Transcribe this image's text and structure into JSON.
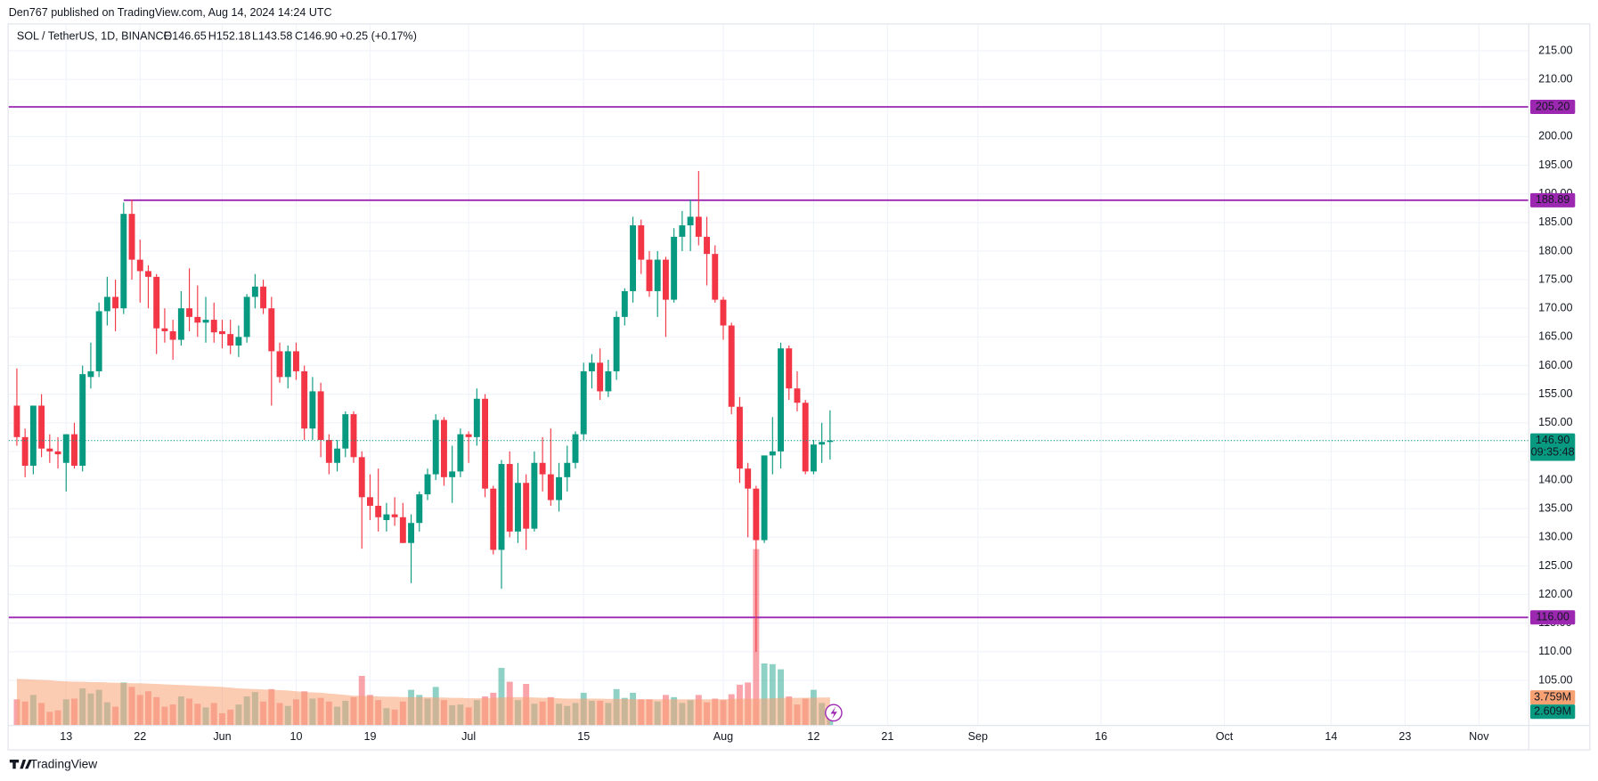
{
  "header": {
    "publisher": "Den767 published on TradingView.com, Aug 14, 2024 14:24 UTC"
  },
  "footer": {
    "brand": "TradingView"
  },
  "chart_data": {
    "type": "candlestick",
    "symbol": "SOL / TetherUS, 1D, BINANCE",
    "ohlc_legend": [
      "O146.65",
      "H152.18",
      "L143.58",
      "C146.90",
      "+0.25 (+0.17%)"
    ],
    "up_color": "#089981",
    "down_color": "#f23645",
    "x": [
      "2024-05-07",
      "2024-05-08",
      "2024-05-09",
      "2024-05-10",
      "2024-05-11",
      "2024-05-12",
      "2024-05-13",
      "2024-05-14",
      "2024-05-15",
      "2024-05-16",
      "2024-05-17",
      "2024-05-18",
      "2024-05-19",
      "2024-05-20",
      "2024-05-21",
      "2024-05-22",
      "2024-05-23",
      "2024-05-24",
      "2024-05-25",
      "2024-05-26",
      "2024-05-27",
      "2024-05-28",
      "2024-05-29",
      "2024-05-30",
      "2024-05-31",
      "2024-06-01",
      "2024-06-02",
      "2024-06-03",
      "2024-06-04",
      "2024-06-05",
      "2024-06-06",
      "2024-06-07",
      "2024-06-08",
      "2024-06-09",
      "2024-06-10",
      "2024-06-11",
      "2024-06-12",
      "2024-06-13",
      "2024-06-14",
      "2024-06-15",
      "2024-06-16",
      "2024-06-17",
      "2024-06-18",
      "2024-06-19",
      "2024-06-20",
      "2024-06-21",
      "2024-06-22",
      "2024-06-23",
      "2024-06-24",
      "2024-06-25",
      "2024-06-26",
      "2024-06-27",
      "2024-06-28",
      "2024-06-29",
      "2024-06-30",
      "2024-07-01",
      "2024-07-02",
      "2024-07-03",
      "2024-07-04",
      "2024-07-05",
      "2024-07-06",
      "2024-07-07",
      "2024-07-08",
      "2024-07-09",
      "2024-07-10",
      "2024-07-11",
      "2024-07-12",
      "2024-07-13",
      "2024-07-14",
      "2024-07-15",
      "2024-07-16",
      "2024-07-17",
      "2024-07-18",
      "2024-07-19",
      "2024-07-20",
      "2024-07-21",
      "2024-07-22",
      "2024-07-23",
      "2024-07-24",
      "2024-07-25",
      "2024-07-26",
      "2024-07-27",
      "2024-07-28",
      "2024-07-29",
      "2024-07-30",
      "2024-07-31",
      "2024-08-01",
      "2024-08-02",
      "2024-08-03",
      "2024-08-04",
      "2024-08-05",
      "2024-08-06",
      "2024-08-07",
      "2024-08-08",
      "2024-08-09",
      "2024-08-10",
      "2024-08-11",
      "2024-08-12",
      "2024-08-13",
      "2024-08-14"
    ],
    "open": [
      153,
      147.5,
      142.5,
      153,
      145.5,
      145,
      143,
      148,
      142.5,
      158,
      159,
      169.5,
      172,
      170,
      186.5,
      178.5,
      176.5,
      175.5,
      166.5,
      166,
      164.5,
      170,
      168.5,
      167.5,
      168,
      166,
      165.5,
      163.5,
      165,
      172,
      173.8,
      170,
      162.5,
      158,
      162.5,
      159,
      149,
      155.5,
      147,
      143,
      145.5,
      151.5,
      144,
      137,
      135.5,
      133,
      134,
      133.5,
      129,
      132.5,
      137.5,
      141,
      150.5,
      140.5,
      141.5,
      148,
      147.5,
      154.2,
      138.5,
      127.8,
      142.8,
      131,
      139.5,
      131.5,
      143,
      141,
      136.5,
      140.5,
      143,
      148,
      159,
      160.5,
      155.5,
      159,
      168.5,
      173,
      184.5,
      178.5,
      173,
      178.5,
      171.5,
      182.5,
      184.5,
      186,
      182.5,
      179.5,
      171.5,
      167,
      152.8,
      142,
      138.5,
      129.5,
      144.3,
      145,
      163,
      156,
      153.5,
      141.5,
      146.2,
      146.65
    ],
    "high": [
      159.5,
      149,
      153,
      155,
      148,
      147.5,
      148,
      150,
      160,
      164,
      171,
      175.5,
      175,
      188.5,
      189,
      182,
      177.5,
      176,
      170,
      168,
      173,
      177,
      174,
      172,
      171,
      168,
      168,
      167,
      172.5,
      176,
      175,
      172,
      164,
      163.5,
      164,
      160,
      158,
      157,
      148,
      147,
      152,
      152,
      145,
      141,
      142,
      136,
      137,
      136,
      134,
      138,
      142,
      151.5,
      151,
      146,
      149,
      148.5,
      156,
      155,
      139,
      143.5,
      145,
      143,
      141,
      145,
      147.5,
      149,
      143,
      146,
      148.5,
      160.5,
      162,
      163,
      161,
      169.5,
      173.5,
      186,
      185.5,
      180,
      180,
      179,
      184,
      187,
      189,
      194,
      186,
      181,
      172,
      167.5,
      154.5,
      143,
      139,
      144,
      151,
      164,
      163.5,
      159,
      154,
      147,
      150,
      152.18
    ],
    "low": [
      146,
      140.5,
      141,
      144,
      143,
      142,
      138,
      142,
      141.5,
      156,
      158,
      167,
      166,
      169,
      175,
      171,
      170,
      162,
      164,
      161,
      163.5,
      166,
      165,
      164,
      164,
      163,
      162,
      161.5,
      164,
      170,
      169,
      153,
      157,
      156,
      157.5,
      147,
      147,
      144,
      141,
      141.5,
      144,
      143,
      128,
      133,
      131,
      131,
      132,
      129,
      122,
      131,
      136.5,
      140,
      139,
      136,
      140.5,
      143,
      146,
      137,
      127,
      121,
      130,
      129,
      127.8,
      131,
      138,
      135.5,
      134.5,
      138,
      142,
      147,
      156,
      154,
      154.5,
      157.5,
      167,
      171,
      176,
      172,
      168.5,
      165,
      171,
      180,
      180,
      181,
      174,
      171,
      164.5,
      151.5,
      139.5,
      130,
      110,
      129,
      141,
      142,
      154,
      152,
      141,
      141,
      143,
      143.58
    ],
    "close": [
      147.5,
      142.5,
      153,
      145.5,
      145,
      144.5,
      148,
      142.5,
      158.5,
      159,
      169.5,
      172,
      170,
      186.5,
      178.5,
      176.5,
      175.5,
      166.5,
      166,
      164.5,
      170,
      168.5,
      167.5,
      168,
      165.8,
      165.5,
      163.5,
      165,
      172,
      173.8,
      170,
      162.5,
      158,
      162.5,
      159,
      149,
      155.5,
      147,
      143,
      145.5,
      151.5,
      144,
      137,
      135.5,
      133.5,
      134,
      133.5,
      129,
      132.5,
      137.5,
      141,
      150.5,
      140.5,
      141.5,
      148,
      147.5,
      154.2,
      138.5,
      127.8,
      142.8,
      131,
      139.5,
      131.5,
      143,
      141,
      136.5,
      140.5,
      143,
      148,
      159,
      160.5,
      155.5,
      159,
      168.5,
      173,
      184.5,
      178.5,
      173,
      178.5,
      171.5,
      182.5,
      184.5,
      186,
      182.5,
      179.5,
      171.5,
      167,
      152.8,
      142,
      138.5,
      129.5,
      144.3,
      145,
      163,
      156,
      153.5,
      141.5,
      146.2,
      146.65,
      146.9
    ],
    "volume": {
      "axis": "y2",
      "up_color": "rgba(8,153,129,0.45)",
      "down_color": "rgba(242,54,69,0.45)",
      "values": [
        3.5,
        3.2,
        4.1,
        3.0,
        1.8,
        2.0,
        3.5,
        3.6,
        5.0,
        4.3,
        4.8,
        3.1,
        2.5,
        5.8,
        5.2,
        4.1,
        4.6,
        3.8,
        2.5,
        2.8,
        3.9,
        3.6,
        2.9,
        2.4,
        3.0,
        1.6,
        2.1,
        2.8,
        3.9,
        4.5,
        3.2,
        4.9,
        3.0,
        2.6,
        3.5,
        4.6,
        3.6,
        3.7,
        3.2,
        2.5,
        3.3,
        3.8,
        6.7,
        4.1,
        3.4,
        2.3,
        2.1,
        3.2,
        4.8,
        4.1,
        3.6,
        5.2,
        3.4,
        2.7,
        2.8,
        2.4,
        3.4,
        3.9,
        4.4,
        7.8,
        5.9,
        3.4,
        5.6,
        2.9,
        3.2,
        3.8,
        2.9,
        2.6,
        3.0,
        4.4,
        3.3,
        3.3,
        3.0,
        4.9,
        3.7,
        4.4,
        3.5,
        3.5,
        3.2,
        4.1,
        3.8,
        3.0,
        3.4,
        4.1,
        3.1,
        3.6,
        3.4,
        4.2,
        5.5,
        5.8,
        24.0,
        8.4,
        8.3,
        7.6,
        3.9,
        2.8,
        3.6,
        4.8,
        3.0,
        2.609
      ],
      "value_labels": [
        null,
        null,
        null,
        null,
        null,
        null,
        null,
        null,
        null,
        null,
        null,
        null,
        null,
        null,
        null,
        null,
        null,
        null,
        null,
        null,
        null,
        null,
        null,
        null,
        null,
        null,
        null,
        null,
        null,
        null,
        null,
        null,
        null,
        null,
        null,
        null,
        null,
        null,
        null,
        null,
        null,
        null,
        null,
        null,
        null,
        null,
        null,
        null,
        null,
        null,
        null,
        null,
        null,
        null,
        null,
        null,
        null,
        null,
        null,
        null,
        null,
        null,
        null,
        null,
        null,
        null,
        null,
        null,
        null,
        null,
        null,
        null,
        null,
        null,
        null,
        null,
        null,
        null,
        null,
        null,
        null,
        null,
        null,
        null,
        null,
        null,
        null,
        null,
        null,
        null,
        null,
        null,
        null,
        null,
        null,
        null,
        null,
        null,
        null,
        "2.609M"
      ]
    },
    "volume_ma": {
      "axis": "y2",
      "color": "#f7a072",
      "values": [
        6.3,
        6.25,
        6.2,
        6.15,
        6.1,
        6.0,
        5.95,
        5.9,
        5.9,
        5.85,
        5.85,
        5.8,
        5.75,
        5.75,
        5.7,
        5.7,
        5.65,
        5.6,
        5.55,
        5.5,
        5.45,
        5.4,
        5.35,
        5.3,
        5.25,
        5.2,
        5.1,
        5.0,
        4.95,
        4.9,
        4.85,
        4.8,
        4.75,
        4.7,
        4.6,
        4.5,
        4.45,
        4.4,
        4.3,
        4.2,
        4.1,
        4.0,
        4.0,
        3.95,
        3.9,
        3.85,
        3.85,
        3.8,
        3.8,
        3.8,
        3.8,
        3.75,
        3.75,
        3.7,
        3.7,
        3.65,
        3.65,
        3.65,
        3.7,
        3.75,
        3.8,
        3.8,
        3.8,
        3.75,
        3.7,
        3.7,
        3.65,
        3.6,
        3.6,
        3.6,
        3.6,
        3.6,
        3.55,
        3.55,
        3.55,
        3.5,
        3.5,
        3.5,
        3.5,
        3.5,
        3.5,
        3.5,
        3.5,
        3.5,
        3.5,
        3.5,
        3.5,
        3.55,
        3.6,
        3.6,
        3.6,
        3.6,
        3.65,
        3.7,
        3.7,
        3.7,
        3.72,
        3.74,
        3.75,
        3.759
      ],
      "value_labels": [
        null,
        null,
        null,
        null,
        null,
        null,
        null,
        null,
        null,
        null,
        null,
        null,
        null,
        null,
        null,
        null,
        null,
        null,
        null,
        null,
        null,
        null,
        null,
        null,
        null,
        null,
        null,
        null,
        null,
        null,
        null,
        null,
        null,
        null,
        null,
        null,
        null,
        null,
        null,
        null,
        null,
        null,
        null,
        null,
        null,
        null,
        null,
        null,
        null,
        null,
        null,
        null,
        null,
        null,
        null,
        null,
        null,
        null,
        null,
        null,
        null,
        null,
        null,
        null,
        null,
        null,
        null,
        null,
        null,
        null,
        null,
        null,
        null,
        null,
        null,
        null,
        null,
        null,
        null,
        null,
        null,
        null,
        null,
        null,
        null,
        null,
        null,
        null,
        null,
        null,
        null,
        null,
        null,
        null,
        null,
        null,
        null,
        null,
        null,
        "3.759M"
      ]
    },
    "levels": [
      {
        "value": 205.2,
        "label": "205.20",
        "color": "#9c27b0"
      },
      {
        "value": 188.89,
        "label": "188.89",
        "color": "#9c27b0",
        "start": "2024-05-20"
      },
      {
        "value": 116,
        "label": "116.00",
        "color": "#9c27b0"
      }
    ],
    "last_price": {
      "value": 146.9,
      "label": "146.90",
      "countdown": "09:35:48",
      "color": "#089981"
    },
    "xlim": [
      "2024-05-06",
      "2024-11-07"
    ],
    "xticks": [
      {
        "value": "2024-05-13",
        "label": "13"
      },
      {
        "value": "2024-05-22",
        "label": "22"
      },
      {
        "value": "2024-06-01",
        "label": "Jun"
      },
      {
        "value": "2024-06-10",
        "label": "10"
      },
      {
        "value": "2024-06-19",
        "label": "19"
      },
      {
        "value": "2024-07-01",
        "label": "Jul"
      },
      {
        "value": "2024-07-15",
        "label": "15"
      },
      {
        "value": "2024-08-01",
        "label": "Aug"
      },
      {
        "value": "2024-08-12",
        "label": "12"
      },
      {
        "value": "2024-08-21",
        "label": "21"
      },
      {
        "value": "2024-09-01",
        "label": "Sep"
      },
      {
        "value": "2024-09-16",
        "label": "16"
      },
      {
        "value": "2024-10-01",
        "label": "Oct"
      },
      {
        "value": "2024-10-14",
        "label": "14"
      },
      {
        "value": "2024-10-23",
        "label": "23"
      },
      {
        "value": "2024-11-01",
        "label": "Nov"
      }
    ],
    "ylim": [
      97.2,
      219.6
    ],
    "yticks": [
      {
        "value": 105,
        "label": "105.00"
      },
      {
        "value": 110,
        "label": "110.00"
      },
      {
        "value": 115,
        "label": "115.00"
      },
      {
        "value": 120,
        "label": "120.00"
      },
      {
        "value": 125,
        "label": "125.00"
      },
      {
        "value": 130,
        "label": "130.00"
      },
      {
        "value": 135,
        "label": "135.00"
      },
      {
        "value": 140,
        "label": "140.00"
      },
      {
        "value": 145,
        "label": "145.00"
      },
      {
        "value": 150,
        "label": "150.00"
      },
      {
        "value": 155,
        "label": "155.00"
      },
      {
        "value": 160,
        "label": "160.00"
      },
      {
        "value": 165,
        "label": "165.00"
      },
      {
        "value": 170,
        "label": "170.00"
      },
      {
        "value": 175,
        "label": "175.00"
      },
      {
        "value": 180,
        "label": "180.00"
      },
      {
        "value": 185,
        "label": "185.00"
      },
      {
        "value": 190,
        "label": "190.00"
      },
      {
        "value": 195,
        "label": "195.00"
      },
      {
        "value": 200,
        "label": "200.00"
      },
      {
        "value": 205,
        "label": "205.00"
      },
      {
        "value": 210,
        "label": "210.00"
      },
      {
        "value": 215,
        "label": "215.00"
      }
    ],
    "y2lim": [
      0,
      95.6
    ],
    "grid": true
  }
}
